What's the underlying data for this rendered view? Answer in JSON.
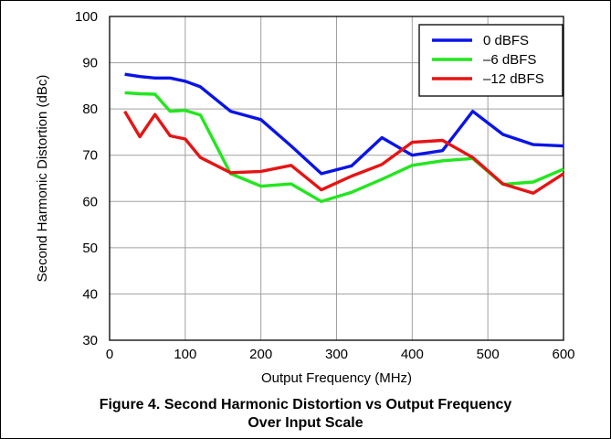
{
  "caption": {
    "line1": "Figure 4. Second Harmonic Distortion vs Output Frequency",
    "line2": "Over Input Scale"
  },
  "colors": {
    "0 dBFS": "#0a14e6",
    "-6 dBFS": "#22e61e",
    "-12 dBFS": "#e61414",
    "grid": "#a0a0a0",
    "axis": "#000000"
  },
  "chart_data": {
    "type": "line",
    "title": "",
    "xlabel": "Output Frequency (MHz)",
    "ylabel": "Second Harmonic Distortion (dBc)",
    "xlim": [
      0,
      600
    ],
    "ylim": [
      30,
      100
    ],
    "xticks": [
      0,
      100,
      200,
      300,
      400,
      500,
      600
    ],
    "yticks": [
      30,
      40,
      50,
      60,
      70,
      80,
      90,
      100
    ],
    "grid": true,
    "legend_position": "top-right",
    "series": [
      {
        "name": "0 dBFS",
        "points": [
          [
            20,
            87.5
          ],
          [
            40,
            87
          ],
          [
            60,
            86.7
          ],
          [
            80,
            86.7
          ],
          [
            100,
            86
          ],
          [
            120,
            84.8
          ],
          [
            160,
            79.5
          ],
          [
            200,
            77.7
          ],
          [
            240,
            72
          ],
          [
            280,
            66
          ],
          [
            320,
            67.7
          ],
          [
            360,
            73.8
          ],
          [
            400,
            70
          ],
          [
            440,
            71
          ],
          [
            480,
            79.5
          ],
          [
            520,
            74.5
          ],
          [
            560,
            72.3
          ],
          [
            600,
            72
          ]
        ]
      },
      {
        "name": "–6 dBFS",
        "points": [
          [
            20,
            83.5
          ],
          [
            40,
            83.3
          ],
          [
            60,
            83.2
          ],
          [
            80,
            79.5
          ],
          [
            100,
            79.7
          ],
          [
            120,
            78.7
          ],
          [
            160,
            66
          ],
          [
            200,
            63.3
          ],
          [
            240,
            63.8
          ],
          [
            280,
            60
          ],
          [
            320,
            62
          ],
          [
            360,
            64.8
          ],
          [
            400,
            67.8
          ],
          [
            440,
            68.8
          ],
          [
            480,
            69.3
          ],
          [
            520,
            63.7
          ],
          [
            560,
            64.2
          ],
          [
            600,
            67
          ]
        ]
      },
      {
        "name": "–12 dBFS",
        "points": [
          [
            20,
            79.5
          ],
          [
            40,
            74
          ],
          [
            60,
            78.8
          ],
          [
            80,
            74.2
          ],
          [
            100,
            73.5
          ],
          [
            120,
            69.5
          ],
          [
            160,
            66.2
          ],
          [
            200,
            66.5
          ],
          [
            240,
            67.8
          ],
          [
            280,
            62.5
          ],
          [
            320,
            65.5
          ],
          [
            360,
            68
          ],
          [
            400,
            72.8
          ],
          [
            440,
            73.2
          ],
          [
            480,
            69.5
          ],
          [
            520,
            63.8
          ],
          [
            560,
            61.8
          ],
          [
            600,
            66
          ]
        ]
      }
    ]
  }
}
